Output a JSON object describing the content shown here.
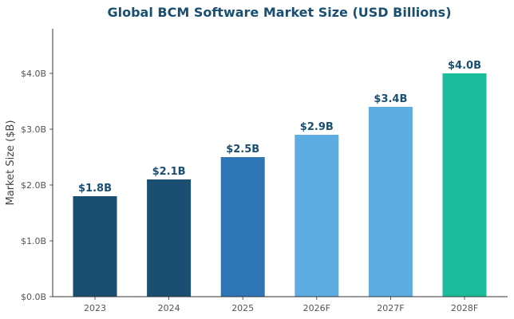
{
  "chart_data": {
    "type": "bar",
    "title": "Global BCM Software Market Size (USD Billions)",
    "xlabel": "",
    "ylabel": "Market Size ($B)",
    "categories": [
      "2023",
      "2024",
      "2025",
      "2026F",
      "2027F",
      "2028F"
    ],
    "values": [
      1.8,
      2.1,
      2.5,
      2.9,
      3.4,
      4.0
    ],
    "value_labels": [
      "$1.8B",
      "$2.1B",
      "$2.5B",
      "$2.9B",
      "$3.4B",
      "$4.0B"
    ],
    "bar_colors": [
      "#1a4f72",
      "#1a4f72",
      "#2e75b6",
      "#5dade2",
      "#5dade2",
      "#1abc9c"
    ],
    "label_color": "#1a4f72",
    "ylim": [
      0,
      4.8
    ],
    "yticks": [
      0,
      1,
      2,
      3,
      4
    ],
    "ytick_labels": [
      "$0.0B",
      "$1.0B",
      "$2.0B",
      "$3.0B",
      "$4.0B"
    ],
    "grid": false,
    "legend": "none"
  }
}
